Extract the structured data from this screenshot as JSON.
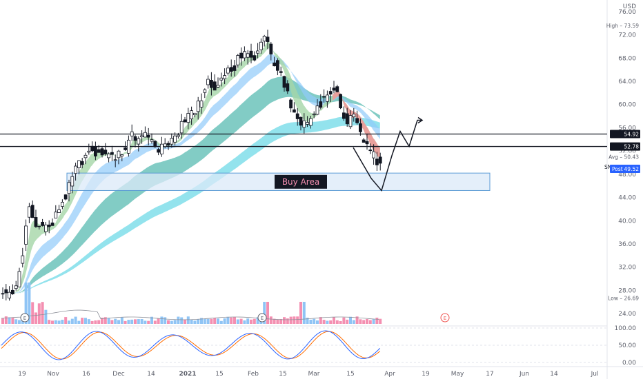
{
  "currency": "USD",
  "price_axis_labels": [
    "76.00",
    "72.00",
    "68.00",
    "64.00",
    "60.00",
    "56.00",
    "52.00",
    "48.00",
    "44.00",
    "40.00",
    "36.00",
    "32.00",
    "28.00",
    "24.00"
  ],
  "osc_axis_labels": [
    "100.00",
    "50.00",
    "0.00"
  ],
  "time_axis_labels": [
    "19",
    "Nov",
    "16",
    "Dec",
    "14",
    "2021",
    "15",
    "Feb",
    "15",
    "Mar",
    "15",
    "Apr",
    "19",
    "May",
    "17",
    "Jun",
    "14",
    "Jul"
  ],
  "tags": {
    "high": "High – 73.59",
    "level_upper": "54.92",
    "level_lower": "52.78",
    "avg": "Avg – 50.43",
    "symbol": "SNAP – 49.61",
    "post": "Post",
    "post_value": "49.52",
    "low": "Low – 26.69"
  },
  "earnings_marker": "E",
  "buy_area_label": "Buy Area",
  "colors": {
    "up": "#ffffff",
    "down": "#131722",
    "outline": "#131722",
    "vol_up": "#8fc4f5",
    "vol_down": "#f48fb1",
    "band_green": "#a5d6a7",
    "band_blue": "#90caf9",
    "band_teal": "#4db6ac",
    "band_cyan": "#80deea",
    "band_red": "#ef9a9a",
    "buy_area_fill": "#dbeaf8",
    "buy_area_border": "#5b9bd5",
    "osc_k": "#2962ff",
    "osc_d": "#ff6d00",
    "post_tag": "#2962ff"
  },
  "chart_data": {
    "type": "candlestick",
    "symbol": "SNAP",
    "y_range": [
      22,
      78
    ],
    "price_ticks": [
      76,
      72,
      68,
      64,
      60,
      56,
      52,
      48,
      44,
      40,
      36,
      32,
      28,
      24
    ],
    "horizontal_levels": [
      54.92,
      52.78
    ],
    "buy_area": {
      "low": 45.2,
      "high": 48.2,
      "label": "Buy Area"
    },
    "high": 73.59,
    "low": 26.69,
    "avg": 50.43,
    "last": 49.61,
    "post": 49.52,
    "projection": [
      52.6,
      47.3,
      45.2,
      51.2,
      55.4,
      52.8,
      57.3,
      57.3
    ],
    "oscillator_range": [
      0,
      100
    ],
    "oscillator_ticks": [
      100,
      50,
      0
    ],
    "time_labels": [
      "19",
      "Nov",
      "16",
      "Dec",
      "14",
      "2021",
      "15",
      "Feb",
      "15",
      "Mar",
      "15",
      "Apr",
      "19",
      "May",
      "17",
      "Jun",
      "14",
      "Jul"
    ]
  }
}
